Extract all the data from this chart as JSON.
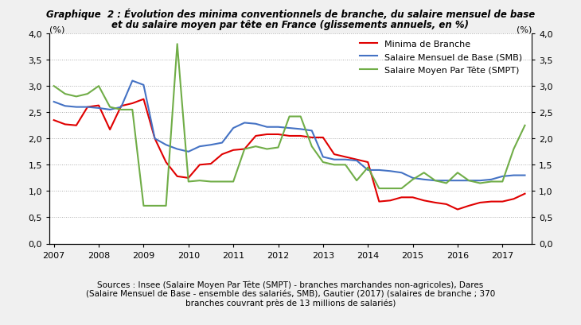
{
  "title_line1": "Graphique  2 : Évolution des minima conventionnels de branche, du salaire mensuel de base",
  "title_line2": "et du salaire moyen par tête en France (glissements annuels, en %)",
  "source_text": "Sources : Insee (Salaire Moyen Par Tête (SMPT) - branches marchandes non-agricoles), Dares\n(Salaire Mensuel de Base - ensemble des salariés, SMB), Gautier (2017) (salaires de branche ; 370\nbranches couvrant près de 13 millions de salariés)",
  "ylabel_left": "(%)",
  "ylabel_right": "(%)",
  "ylim": [
    0.0,
    4.0
  ],
  "yticks": [
    0.0,
    0.5,
    1.0,
    1.5,
    2.0,
    2.5,
    3.0,
    3.5,
    4.0
  ],
  "legend": {
    "minima": "Minima de Branche",
    "smb": "Salaire Mensuel de Base (SMB)",
    "smpt": "Salaire Moyen Par Tête (SMPT)"
  },
  "colors": {
    "minima": "#e00000",
    "smb": "#4472c4",
    "smpt": "#70ad47"
  },
  "x_minima": [
    2007.0,
    2007.25,
    2007.5,
    2007.75,
    2008.0,
    2008.25,
    2008.5,
    2008.75,
    2009.0,
    2009.25,
    2009.5,
    2009.75,
    2010.0,
    2010.25,
    2010.5,
    2010.75,
    2011.0,
    2011.25,
    2011.5,
    2011.75,
    2012.0,
    2012.25,
    2012.5,
    2012.75,
    2013.0,
    2013.25,
    2013.5,
    2013.75,
    2014.0,
    2014.25,
    2014.5,
    2014.75,
    2015.0,
    2015.25,
    2015.5,
    2015.75,
    2016.0,
    2016.25,
    2016.5,
    2016.75,
    2017.0,
    2017.25,
    2017.5
  ],
  "y_minima": [
    2.35,
    2.27,
    2.25,
    2.6,
    2.63,
    2.17,
    2.62,
    2.67,
    2.75,
    2.0,
    1.55,
    1.28,
    1.25,
    1.5,
    1.52,
    1.7,
    1.78,
    1.8,
    2.05,
    2.08,
    2.08,
    2.05,
    2.05,
    2.02,
    2.02,
    1.7,
    1.65,
    1.6,
    1.55,
    0.8,
    0.82,
    0.88,
    0.88,
    0.82,
    0.78,
    0.75,
    0.65,
    0.72,
    0.78,
    0.8,
    0.8,
    0.85,
    0.95
  ],
  "x_smb": [
    2007.0,
    2007.25,
    2007.5,
    2007.75,
    2008.0,
    2008.25,
    2008.5,
    2008.75,
    2009.0,
    2009.25,
    2009.5,
    2009.75,
    2010.0,
    2010.25,
    2010.5,
    2010.75,
    2011.0,
    2011.25,
    2011.5,
    2011.75,
    2012.0,
    2012.25,
    2012.5,
    2012.75,
    2013.0,
    2013.25,
    2013.5,
    2013.75,
    2014.0,
    2014.25,
    2014.5,
    2014.75,
    2015.0,
    2015.25,
    2015.5,
    2015.75,
    2016.0,
    2016.25,
    2016.5,
    2016.75,
    2017.0,
    2017.25,
    2017.5
  ],
  "y_smb": [
    2.7,
    2.62,
    2.6,
    2.6,
    2.58,
    2.55,
    2.6,
    3.1,
    3.02,
    2.0,
    1.88,
    1.8,
    1.75,
    1.85,
    1.88,
    1.92,
    2.2,
    2.3,
    2.28,
    2.22,
    2.22,
    2.2,
    2.18,
    2.15,
    1.65,
    1.6,
    1.6,
    1.58,
    1.4,
    1.4,
    1.38,
    1.35,
    1.25,
    1.22,
    1.2,
    1.2,
    1.2,
    1.2,
    1.2,
    1.22,
    1.28,
    1.3,
    1.3
  ],
  "x_smpt": [
    2007.0,
    2007.25,
    2007.5,
    2007.75,
    2008.0,
    2008.25,
    2008.5,
    2008.75,
    2009.0,
    2009.5,
    2009.75,
    2010.0,
    2010.25,
    2010.5,
    2010.75,
    2011.0,
    2011.25,
    2011.5,
    2011.75,
    2012.0,
    2012.25,
    2012.5,
    2012.75,
    2013.0,
    2013.25,
    2013.5,
    2013.75,
    2014.0,
    2014.25,
    2014.5,
    2014.75,
    2015.0,
    2015.25,
    2015.5,
    2015.75,
    2016.0,
    2016.25,
    2016.5,
    2016.75,
    2017.0,
    2017.25,
    2017.5
  ],
  "y_smpt": [
    3.0,
    2.85,
    2.8,
    2.85,
    3.0,
    2.6,
    2.55,
    2.55,
    0.72,
    0.72,
    3.8,
    1.18,
    1.2,
    1.18,
    1.18,
    1.18,
    1.8,
    1.85,
    1.8,
    1.83,
    2.42,
    2.42,
    1.85,
    1.55,
    1.5,
    1.5,
    1.2,
    1.45,
    1.05,
    1.05,
    1.05,
    1.22,
    1.35,
    1.2,
    1.15,
    1.35,
    1.2,
    1.15,
    1.18,
    1.18,
    1.8,
    2.25
  ],
  "background_color": "#f0f0f0",
  "plot_bg_color": "#ffffff",
  "grid_color": "#999999",
  "linewidth": 1.5
}
